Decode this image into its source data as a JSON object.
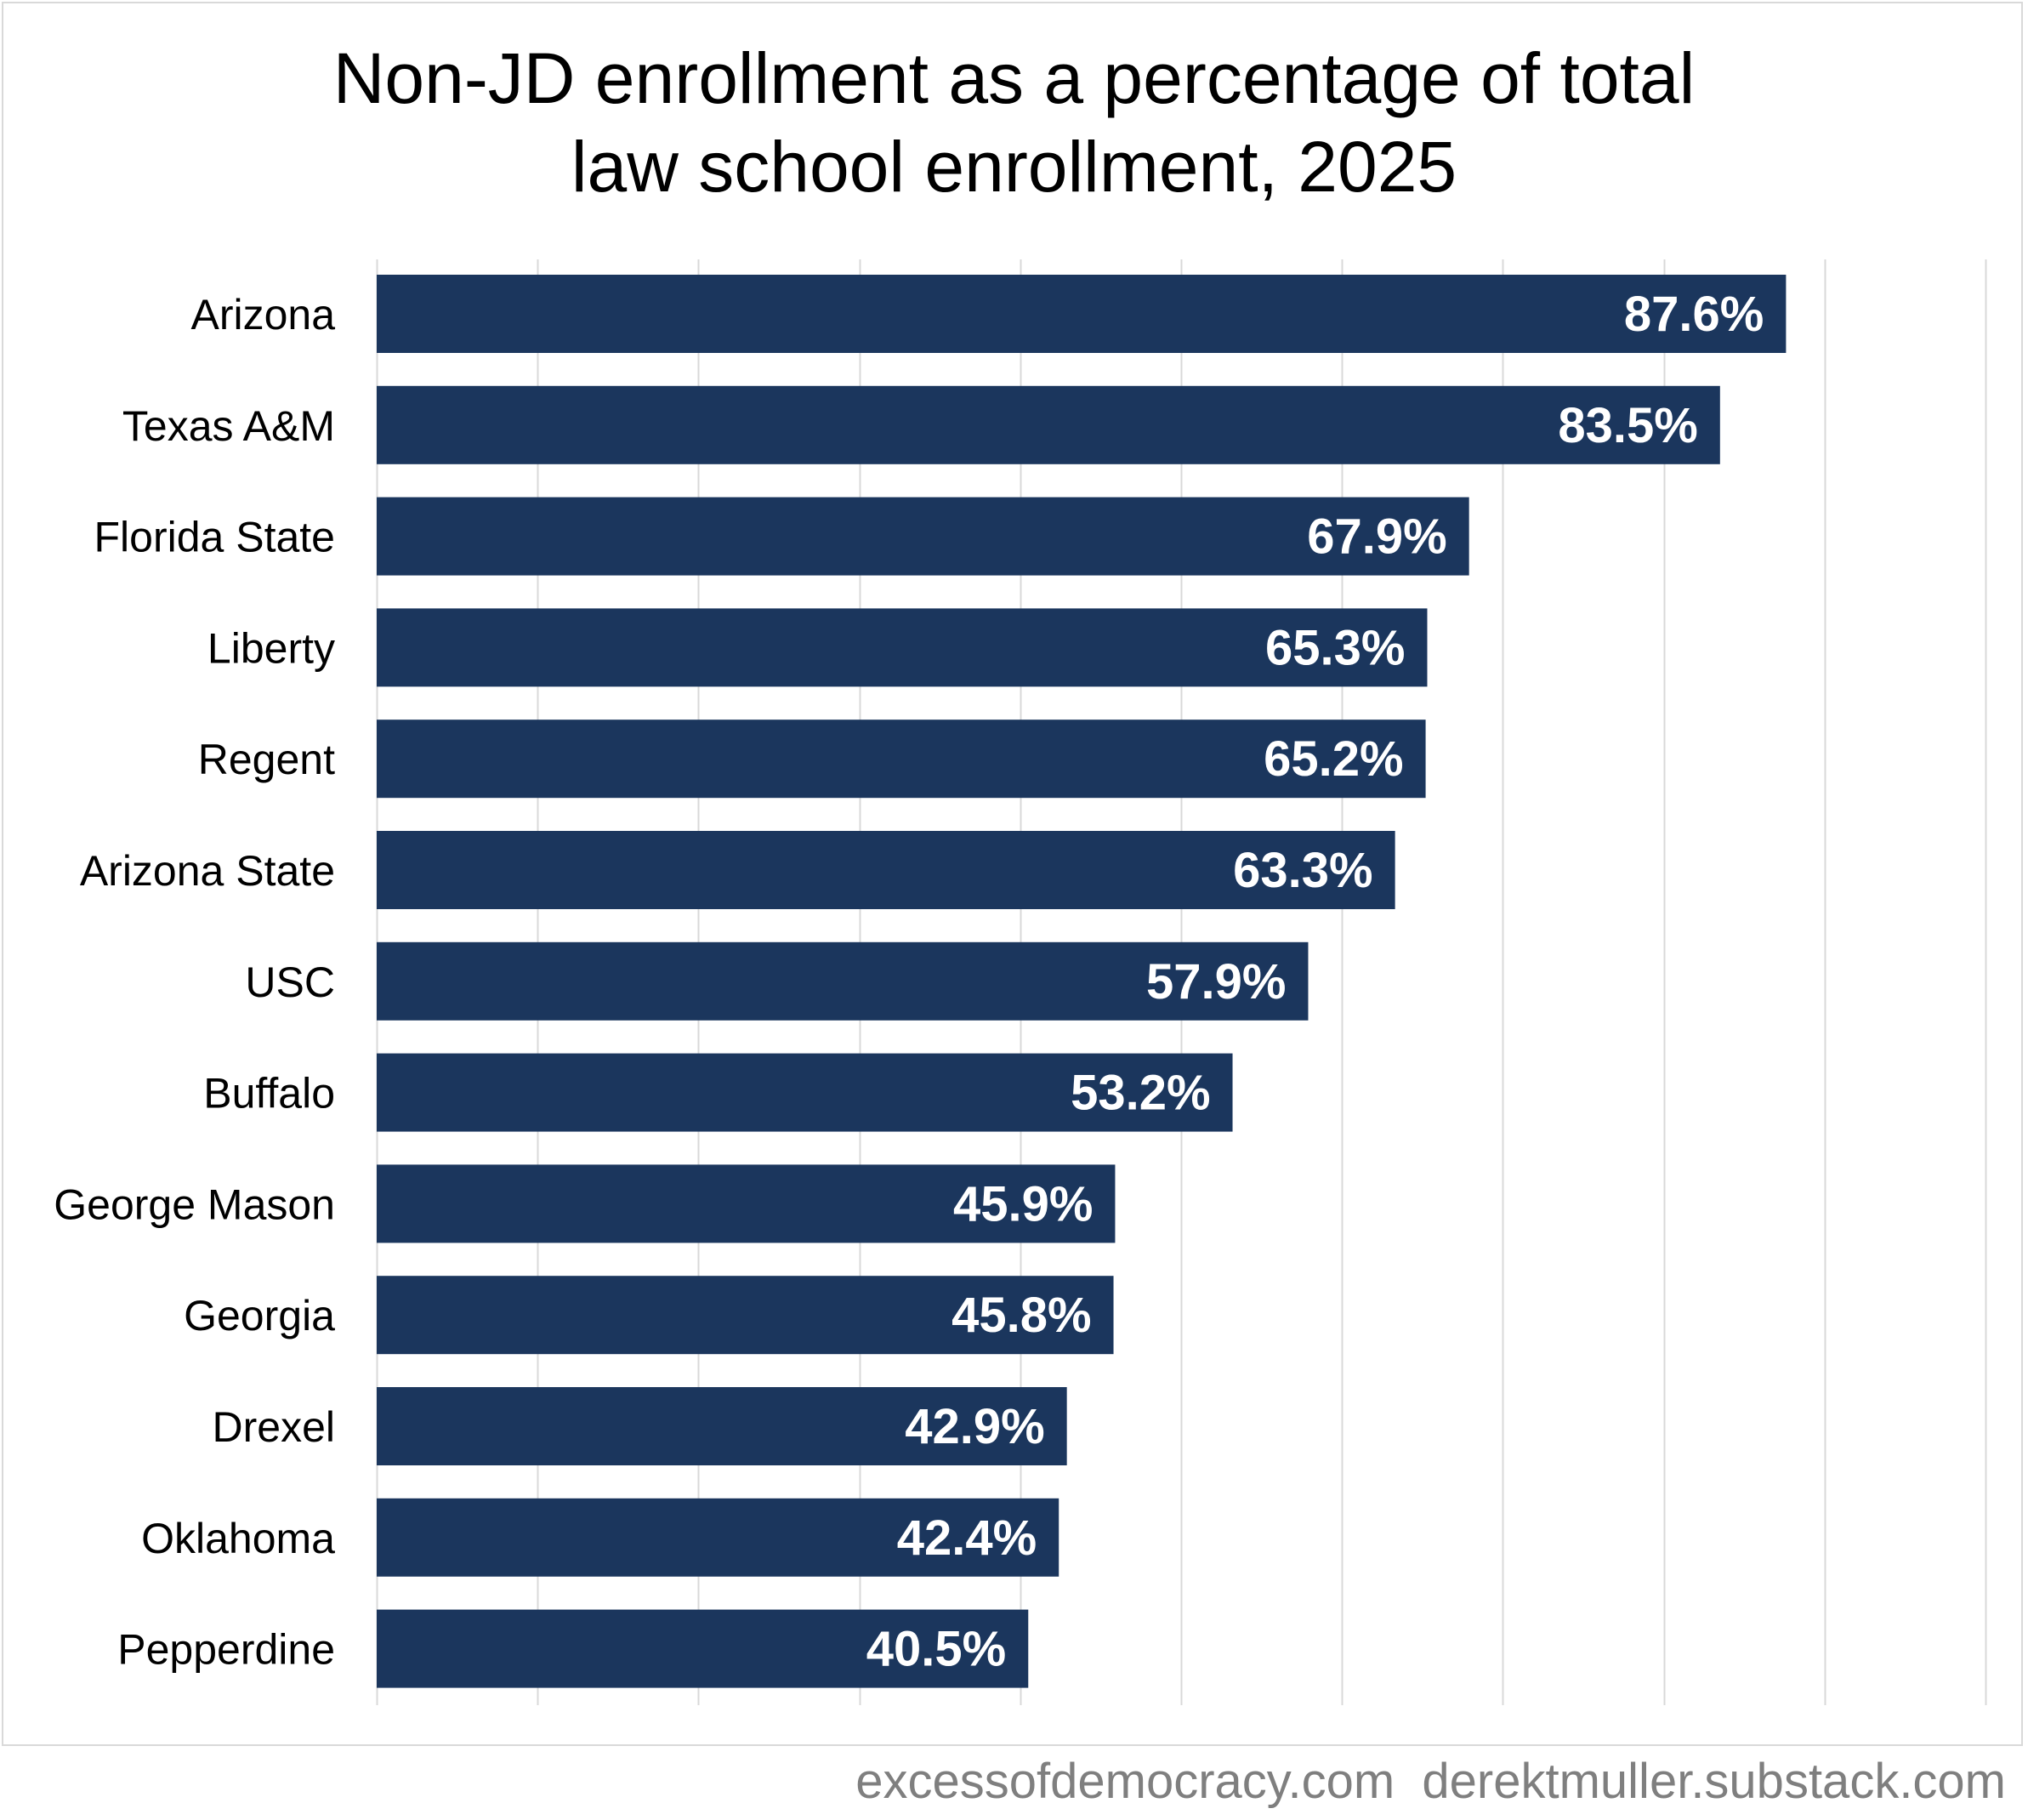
{
  "chart_data": {
    "type": "bar",
    "orientation": "horizontal",
    "title": "Non-JD enrollment as a percentage of total law school enrollment, 2025",
    "title_lines": [
      "Non-JD enrollment as a percentage of total",
      "law school enrollment, 2025"
    ],
    "categories": [
      "Arizona",
      "Texas A&M",
      "Florida State",
      "Liberty",
      "Regent",
      "Arizona State",
      "USC",
      "Buffalo",
      "George Mason",
      "Georgia",
      "Drexel",
      "Oklahoma",
      "Pepperdine"
    ],
    "values": [
      87.6,
      83.5,
      67.9,
      65.3,
      65.2,
      63.3,
      57.9,
      53.2,
      45.9,
      45.8,
      42.9,
      42.4,
      40.5
    ],
    "value_labels": [
      "87.6%",
      "83.5%",
      "67.9%",
      "65.3%",
      "65.2%",
      "63.3%",
      "57.9%",
      "53.2%",
      "45.9%",
      "45.8%",
      "42.9%",
      "42.4%",
      "40.5%"
    ],
    "xlim": [
      0,
      100
    ],
    "grid_step": 10,
    "grid": true,
    "xlabel": "",
    "ylabel": "",
    "bar_color": "#1b365d",
    "grid_color": "#d9d9d9"
  },
  "footer": {
    "text": "excessofdemocracy.com  derektmuller.substack.com"
  }
}
